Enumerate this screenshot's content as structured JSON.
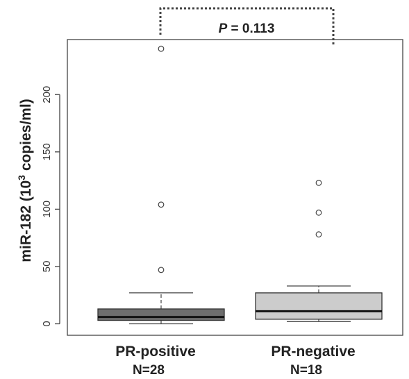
{
  "chart_data": {
    "type": "boxplot",
    "ylabel_main": "miR-182 (10",
    "ylabel_sup": "3",
    "ylabel_tail": " copies/ml)",
    "yticks": [
      0,
      50,
      100,
      150,
      200
    ],
    "ylim": [
      -10,
      248
    ],
    "groups": [
      {
        "label": "PR-positive",
        "n_label": "N=28",
        "min": 0,
        "q1": 3,
        "median": 6,
        "q3": 13,
        "max": 27,
        "outliers": [
          47,
          104,
          240
        ],
        "color": "#6e6e6e"
      },
      {
        "label": "PR-negative",
        "n_label": "N=18",
        "min": 2,
        "q1": 4,
        "median": 11,
        "q3": 27,
        "max": 33,
        "outliers": [
          78,
          97,
          123
        ],
        "color": "#cccccc"
      }
    ],
    "annotation": {
      "p_letter": "P",
      "p_text": " = 0.113"
    },
    "grid": false,
    "legend": "none"
  }
}
